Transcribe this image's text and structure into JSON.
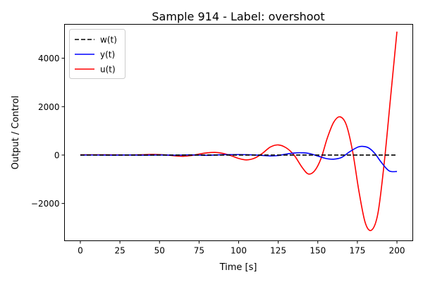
{
  "chart_data": {
    "type": "line",
    "title": "Sample 914 - Label: overshoot",
    "xlabel": "Time [s]",
    "ylabel": "Output / Control",
    "xlim": [
      -10,
      210
    ],
    "ylim": [
      -3540,
      5400
    ],
    "xticks": [
      0,
      25,
      50,
      75,
      100,
      125,
      150,
      175,
      200
    ],
    "yticks": [
      -2000,
      0,
      2000,
      4000
    ],
    "xtick_labels": [
      "0",
      "25",
      "50",
      "75",
      "100",
      "125",
      "150",
      "175",
      "200"
    ],
    "ytick_labels": [
      "−2000",
      "0",
      "2000",
      "4000"
    ],
    "grid": false,
    "legend_position": "top-left",
    "series": [
      {
        "name": "w(t)",
        "color": "#000000",
        "style": "dashed",
        "x": [
          0,
          200
        ],
        "y": [
          0,
          0
        ]
      },
      {
        "name": "y(t)",
        "color": "#0000ff",
        "style": "solid",
        "x": [
          0,
          10,
          20,
          30,
          40,
          50,
          60,
          70,
          80,
          90,
          100,
          105,
          110,
          115,
          120,
          125,
          130,
          135,
          140,
          145,
          150,
          155,
          160,
          165,
          170,
          175,
          178,
          182,
          186,
          190,
          195,
          200
        ],
        "y": [
          0,
          2,
          -3,
          3,
          -4,
          5,
          -6,
          8,
          -10,
          14,
          20,
          15,
          5,
          -15,
          -35,
          -20,
          40,
          85,
          95,
          60,
          -40,
          -140,
          -170,
          -100,
          130,
          320,
          360,
          300,
          70,
          -290,
          -650,
          -680
        ]
      },
      {
        "name": "u(t)",
        "color": "#ff0000",
        "style": "solid",
        "x": [
          0,
          10,
          20,
          30,
          40,
          45,
          50,
          55,
          60,
          65,
          70,
          75,
          80,
          85,
          90,
          95,
          100,
          105,
          110,
          115,
          120,
          125,
          130,
          135,
          140,
          144,
          148,
          152,
          156,
          160,
          164,
          168,
          172,
          176,
          180,
          184,
          188,
          192,
          196,
          200
        ],
        "y": [
          10,
          12,
          8,
          5,
          15,
          25,
          20,
          0,
          -35,
          -50,
          -20,
          40,
          90,
          110,
          70,
          -20,
          -140,
          -200,
          -130,
          70,
          330,
          420,
          300,
          0,
          -500,
          -780,
          -650,
          -150,
          700,
          1350,
          1580,
          1250,
          150,
          -1500,
          -2800,
          -3100,
          -2400,
          -300,
          2400,
          5100
        ]
      }
    ]
  }
}
